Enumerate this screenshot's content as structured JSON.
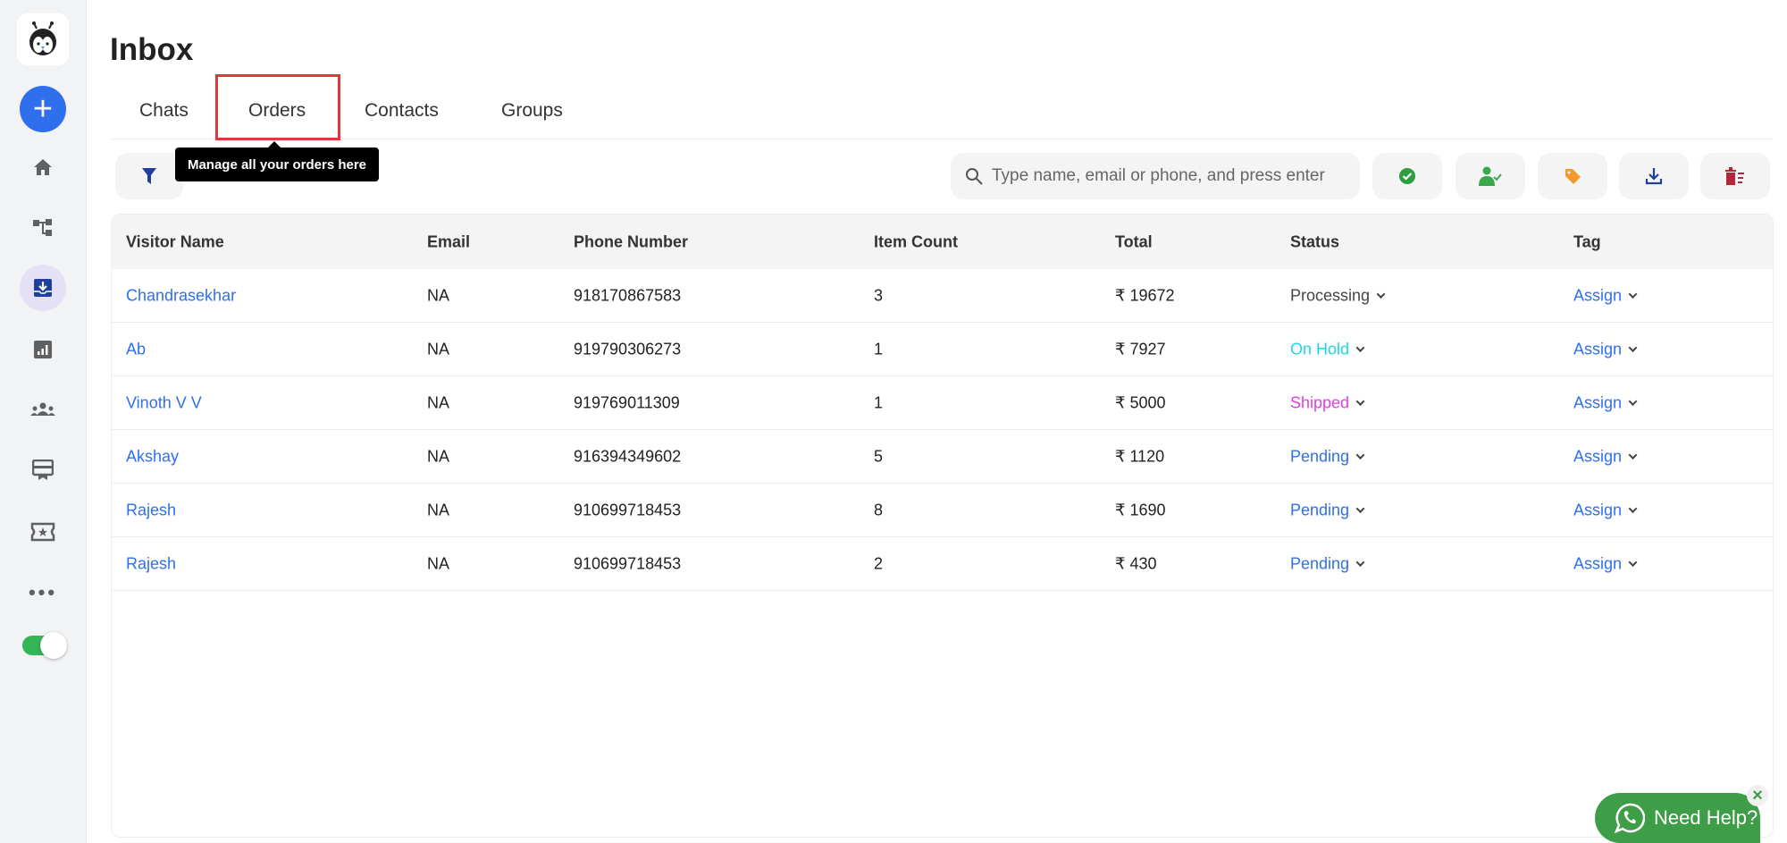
{
  "sidebar": {
    "items": [
      "logo",
      "new",
      "home",
      "flows",
      "inbox",
      "analytics",
      "contacts",
      "templates",
      "campaigns",
      "more",
      "status-toggle"
    ],
    "active": "inbox",
    "toggle_on": true
  },
  "header": {
    "title": "Inbox"
  },
  "tabs": [
    {
      "label": "Chats"
    },
    {
      "label": "Orders",
      "active": true,
      "highlighted": true
    },
    {
      "label": "Contacts"
    },
    {
      "label": "Groups"
    }
  ],
  "tooltip": {
    "text": "Manage all your orders here"
  },
  "search": {
    "placeholder": "Type name, email or phone, and press enter",
    "value": ""
  },
  "actions": [
    {
      "icon": "check-circle-icon",
      "color": "#2e9e3f"
    },
    {
      "icon": "user-check-icon",
      "color": "#3aa84a"
    },
    {
      "icon": "tag-icon",
      "color": "#f29a2e"
    },
    {
      "icon": "download-icon",
      "color": "#1e3f9c"
    },
    {
      "icon": "delete-icon",
      "color": "#b0283a"
    }
  ],
  "table": {
    "columns": [
      "Visitor Name",
      "Email",
      "Phone Number",
      "Item Count",
      "Total",
      "Status",
      "Tag"
    ],
    "rows": [
      {
        "name": "Chandrasekhar",
        "email": "NA",
        "phone": "918170867583",
        "count": "3",
        "total": "₹ 19672",
        "status": "Processing",
        "status_color": "#444444",
        "tag": "Assign"
      },
      {
        "name": "Ab",
        "email": "NA",
        "phone": "919790306273",
        "count": "1",
        "total": "₹ 7927",
        "status": "On Hold",
        "status_color": "#1ed6e8",
        "tag": "Assign"
      },
      {
        "name": "Vinoth V V",
        "email": "NA",
        "phone": "919769011309",
        "count": "1",
        "total": "₹ 5000",
        "status": "Shipped",
        "status_color": "#e23de8",
        "tag": "Assign"
      },
      {
        "name": "Akshay",
        "email": "NA",
        "phone": "916394349602",
        "count": "5",
        "total": "₹ 1120",
        "status": "Pending",
        "status_color": "#2f6fed",
        "tag": "Assign"
      },
      {
        "name": "Rajesh",
        "email": "NA",
        "phone": "910699718453",
        "count": "8",
        "total": "₹ 1690",
        "status": "Pending",
        "status_color": "#2f6fed",
        "tag": "Assign"
      },
      {
        "name": "Rajesh",
        "email": "NA",
        "phone": "910699718453",
        "count": "2",
        "total": "₹ 430",
        "status": "Pending",
        "status_color": "#2f6fed",
        "tag": "Assign"
      }
    ]
  },
  "help": {
    "label": "Need Help?",
    "close": "×"
  },
  "colors": {
    "accent": "#2f6fed",
    "whatsapp": "#3d9e47",
    "highlight_box": "#e0383b"
  }
}
